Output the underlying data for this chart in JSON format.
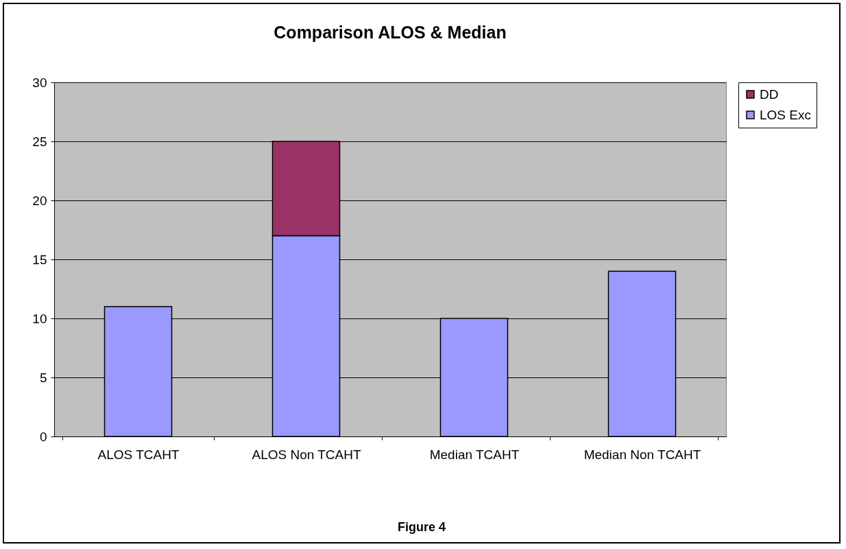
{
  "chart_data": {
    "type": "bar",
    "title": "Comparison ALOS & Median",
    "categories": [
      "ALOS TCAHT",
      "ALOS Non TCAHT",
      "Median TCAHT",
      "Median Non TCAHT"
    ],
    "series": [
      {
        "name": "LOS Exc",
        "color": "#9999ff",
        "values": [
          11,
          17,
          10,
          14
        ]
      },
      {
        "name": "DD",
        "color": "#993366",
        "values": [
          null,
          8,
          null,
          null
        ]
      }
    ],
    "stacked": true,
    "ylim": [
      0,
      30
    ],
    "yticks": [
      0,
      5,
      10,
      15,
      20,
      25,
      30
    ],
    "grid": "y",
    "legend": "right",
    "annotations": [
      "Figure 4"
    ]
  }
}
